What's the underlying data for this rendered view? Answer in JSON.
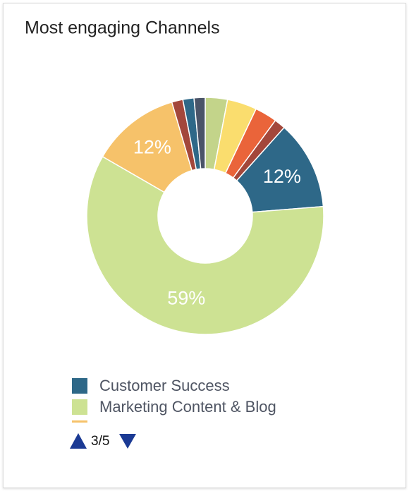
{
  "chart_data": {
    "type": "pie",
    "donut": true,
    "title": "Most engaging Channels",
    "categories": [
      null,
      null,
      null,
      null,
      "Customer Success",
      "Marketing Content & Blog",
      null,
      null,
      null,
      null
    ],
    "values": [
      3,
      4,
      3,
      1.5,
      12,
      59,
      12,
      1.5,
      1.5,
      1.5
    ],
    "value_labels": [
      null,
      null,
      null,
      null,
      "12%",
      "59%",
      "12%",
      null,
      null,
      null
    ],
    "colors": [
      "#c3d48a",
      "#fadd6e",
      "#ea643a",
      "#a3473b",
      "#2e6888",
      "#cde293",
      "#f6c26a",
      "#a3473b",
      "#2e6888",
      "#4a5468"
    ],
    "legend_page": "3/5"
  }
}
